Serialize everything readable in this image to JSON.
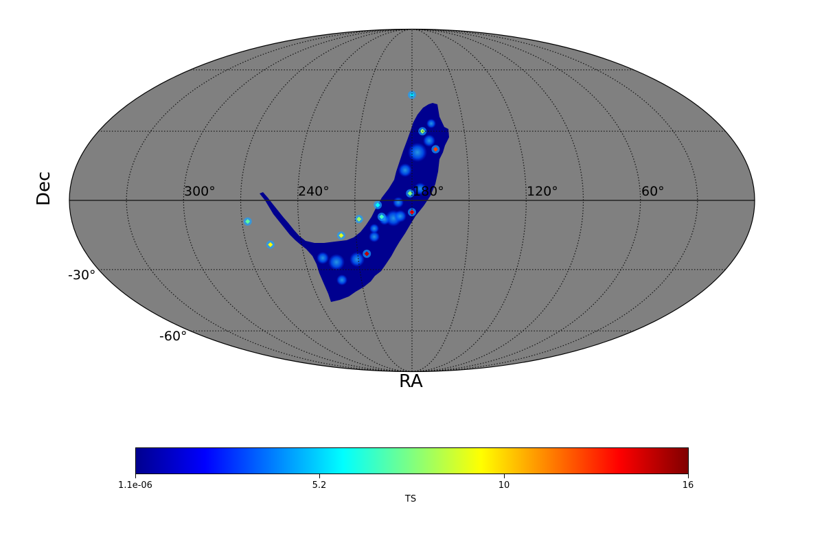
{
  "chart_data": {
    "type": "heatmap",
    "projection": "mollweide",
    "title": "",
    "xlabel": "RA",
    "ylabel": "Dec",
    "ra_tick_labels": [
      "300°",
      "240°",
      "180°",
      "120°",
      "60°"
    ],
    "ra_ticks_deg": [
      300,
      240,
      180,
      120,
      60
    ],
    "dec_tick_labels": [
      "-30°",
      "-60°"
    ],
    "dec_ticks_deg": [
      -30,
      -60
    ],
    "grid": true,
    "grid_style": "dotted",
    "background_color": "#808080",
    "colormap": "jet",
    "colorbar": {
      "label": "TS",
      "orientation": "horizontal",
      "position": "bottom",
      "min": 1.1e-06,
      "max": 16,
      "tick_labels": [
        "1.1e-06",
        "5.2",
        "10",
        "16"
      ],
      "tick_values": [
        1.1e-06,
        5.2,
        10,
        16
      ]
    },
    "footprint": {
      "description": "Curved band of TS values, mostly low (dark blue), spanning roughly RA 160°–275°, Dec +55° to -50°",
      "dominant_value_range": [
        0,
        2
      ],
      "max_observed": 16
    },
    "hotspots": [
      {
        "ra": 174,
        "dec": 30,
        "ts": 8.5
      },
      {
        "ra": 167,
        "dec": 22,
        "ts": 13
      },
      {
        "ra": 180,
        "dec": 47,
        "ts": 5.5
      },
      {
        "ra": 181,
        "dec": 3,
        "ts": 8
      },
      {
        "ra": 180,
        "dec": -5,
        "ts": 14
      },
      {
        "ra": 196,
        "dec": -7,
        "ts": 7
      },
      {
        "ra": 208,
        "dec": -8,
        "ts": 8.5
      },
      {
        "ra": 218,
        "dec": -15,
        "ts": 9.5
      },
      {
        "ra": 257,
        "dec": -19,
        "ts": 10
      },
      {
        "ra": 267,
        "dec": -9,
        "ts": 7.5
      },
      {
        "ra": 205,
        "dec": -23,
        "ts": 15
      },
      {
        "ra": 198,
        "dec": -2,
        "ts": 6
      }
    ]
  },
  "labels": {
    "ra_axis": "RA",
    "dec_axis": "Dec",
    "ra_ticks": [
      "300°",
      "240°",
      "180°",
      "120°",
      "60°"
    ],
    "dec_ticks": [
      "-30°",
      "-60°"
    ],
    "colorbar_ticks": [
      "1.1e-06",
      "5.2",
      "10",
      "16"
    ],
    "colorbar_title": "TS"
  }
}
